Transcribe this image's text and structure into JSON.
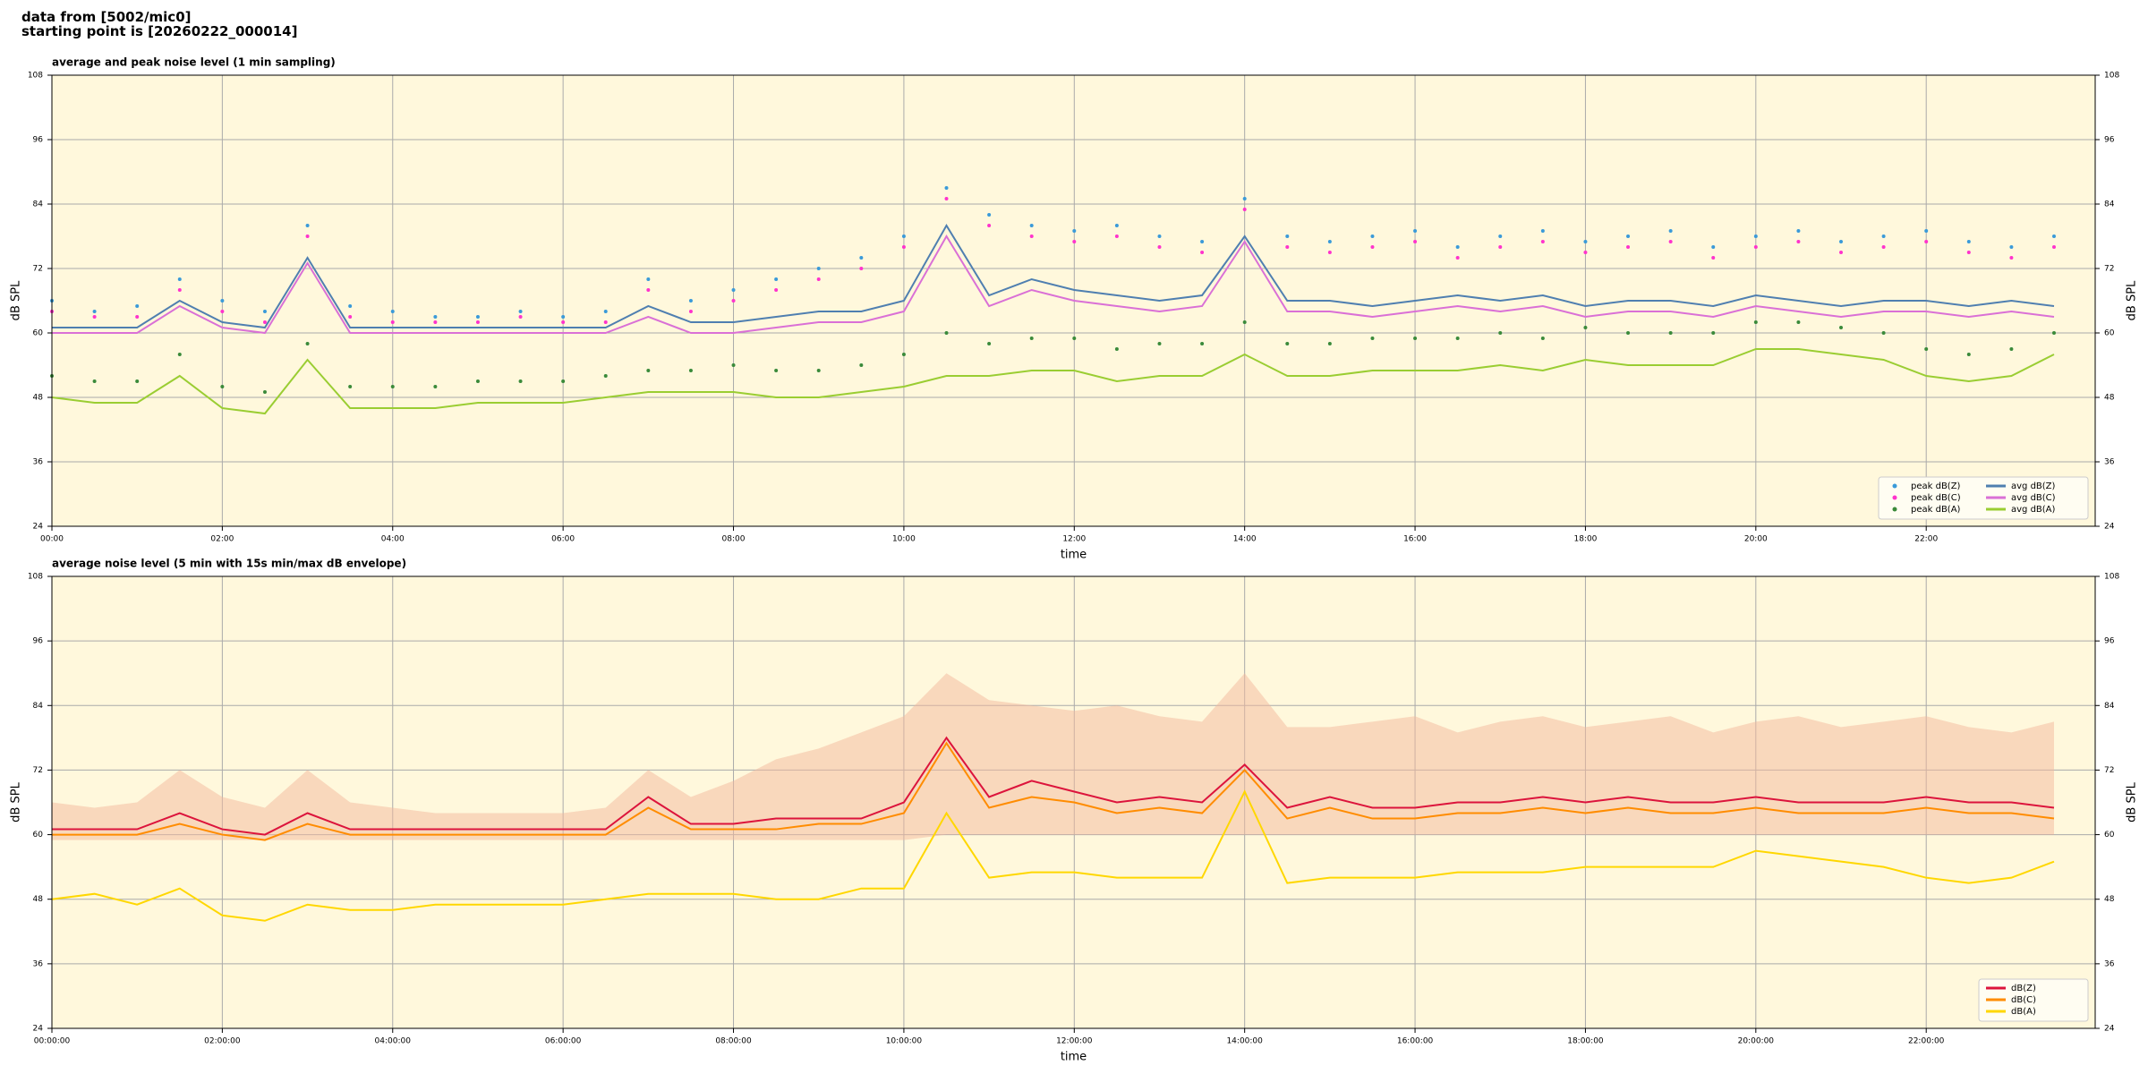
{
  "header": {
    "line1": "data from [5002/mic0]",
    "line2": "starting point is [20260222_000014]"
  },
  "chart_data": [
    {
      "type": "line",
      "title": "average and peak noise level (1 min sampling)",
      "xlabel": "time",
      "ylabel": "dB SPL",
      "x": [
        "00:00",
        "00:30",
        "01:00",
        "01:30",
        "02:00",
        "02:30",
        "03:00",
        "03:30",
        "04:00",
        "04:30",
        "05:00",
        "05:30",
        "06:00",
        "06:30",
        "07:00",
        "07:30",
        "08:00",
        "08:30",
        "09:00",
        "09:30",
        "10:00",
        "10:30",
        "11:00",
        "11:30",
        "12:00",
        "12:30",
        "13:00",
        "13:30",
        "14:00",
        "14:30",
        "15:00",
        "15:30",
        "16:00",
        "16:30",
        "17:00",
        "17:30",
        "18:00",
        "18:30",
        "19:00",
        "19:30",
        "20:00",
        "20:30",
        "21:00",
        "21:30",
        "22:00",
        "22:30",
        "23:00",
        "23:30"
      ],
      "xlim": [
        "00:00",
        "23:59"
      ],
      "xticks": [
        "00:00",
        "02:00",
        "04:00",
        "06:00",
        "08:00",
        "10:00",
        "12:00",
        "14:00",
        "16:00",
        "18:00",
        "20:00",
        "22:00"
      ],
      "ylim": [
        24,
        108
      ],
      "yticks": [
        24,
        36,
        48,
        60,
        72,
        84,
        96,
        108
      ],
      "grid": true,
      "legend": "lower right",
      "legend_columns": 2,
      "series": [
        {
          "name": "peak dB(Z)",
          "style": "dots",
          "color": "#3a9ad9",
          "values": [
            66,
            64,
            65,
            70,
            66,
            64,
            80,
            65,
            64,
            63,
            63,
            64,
            63,
            64,
            70,
            66,
            68,
            70,
            72,
            74,
            78,
            87,
            82,
            80,
            79,
            80,
            78,
            77,
            85,
            78,
            77,
            78,
            79,
            76,
            78,
            79,
            77,
            78,
            79,
            76,
            78,
            79,
            77,
            78,
            79,
            77,
            76,
            78
          ]
        },
        {
          "name": "peak dB(C)",
          "style": "dots",
          "color": "#ff33cc",
          "values": [
            64,
            63,
            63,
            68,
            64,
            62,
            78,
            63,
            62,
            62,
            62,
            63,
            62,
            62,
            68,
            64,
            66,
            68,
            70,
            72,
            76,
            85,
            80,
            78,
            77,
            78,
            76,
            75,
            83,
            76,
            75,
            76,
            77,
            74,
            76,
            77,
            75,
            76,
            77,
            74,
            76,
            77,
            75,
            76,
            77,
            75,
            74,
            76
          ]
        },
        {
          "name": "peak dB(A)",
          "style": "dots",
          "color": "#3a8a3a",
          "values": [
            52,
            51,
            51,
            56,
            50,
            49,
            58,
            50,
            50,
            50,
            51,
            51,
            51,
            52,
            53,
            53,
            54,
            53,
            53,
            54,
            56,
            60,
            58,
            59,
            59,
            57,
            58,
            58,
            62,
            58,
            58,
            59,
            59,
            59,
            60,
            59,
            61,
            60,
            60,
            60,
            62,
            62,
            61,
            60,
            57,
            56,
            57,
            60
          ]
        },
        {
          "name": "avg dB(Z)",
          "style": "line",
          "color": "#4f7fb0",
          "values": [
            61,
            61,
            61,
            66,
            62,
            61,
            74,
            61,
            61,
            61,
            61,
            61,
            61,
            61,
            65,
            62,
            62,
            63,
            64,
            64,
            66,
            80,
            67,
            70,
            68,
            67,
            66,
            67,
            78,
            66,
            66,
            65,
            66,
            67,
            66,
            67,
            65,
            66,
            66,
            65,
            67,
            66,
            65,
            66,
            66,
            65,
            66,
            65
          ]
        },
        {
          "name": "avg dB(C)",
          "style": "line",
          "color": "#da70d6",
          "values": [
            60,
            60,
            60,
            65,
            61,
            60,
            73,
            60,
            60,
            60,
            60,
            60,
            60,
            60,
            63,
            60,
            60,
            61,
            62,
            62,
            64,
            78,
            65,
            68,
            66,
            65,
            64,
            65,
            77,
            64,
            64,
            63,
            64,
            65,
            64,
            65,
            63,
            64,
            64,
            63,
            65,
            64,
            63,
            64,
            64,
            63,
            64,
            63
          ]
        },
        {
          "name": "avg dB(A)",
          "style": "line",
          "color": "#9acd32",
          "values": [
            48,
            47,
            47,
            52,
            46,
            45,
            55,
            46,
            46,
            46,
            47,
            47,
            47,
            48,
            49,
            49,
            49,
            48,
            48,
            49,
            50,
            52,
            52,
            53,
            53,
            51,
            52,
            52,
            56,
            52,
            52,
            53,
            53,
            53,
            54,
            53,
            55,
            54,
            54,
            54,
            57,
            57,
            56,
            55,
            52,
            51,
            52,
            56
          ]
        }
      ]
    },
    {
      "type": "line",
      "title": "average noise level (5 min with 15s min/max dB envelope)",
      "xlabel": "time",
      "ylabel": "dB SPL",
      "x": [
        "00:00",
        "00:30",
        "01:00",
        "01:30",
        "02:00",
        "02:30",
        "03:00",
        "03:30",
        "04:00",
        "04:30",
        "05:00",
        "05:30",
        "06:00",
        "06:30",
        "07:00",
        "07:30",
        "08:00",
        "08:30",
        "09:00",
        "09:30",
        "10:00",
        "10:30",
        "11:00",
        "11:30",
        "12:00",
        "12:30",
        "13:00",
        "13:30",
        "14:00",
        "14:30",
        "15:00",
        "15:30",
        "16:00",
        "16:30",
        "17:00",
        "17:30",
        "18:00",
        "18:30",
        "19:00",
        "19:30",
        "20:00",
        "20:30",
        "21:00",
        "21:30",
        "22:00",
        "22:30",
        "23:00",
        "23:30"
      ],
      "xlim": [
        "00:00",
        "23:59"
      ],
      "xticks": [
        {
          "value": "00:00",
          "label": "00:00:00"
        },
        {
          "value": "02:00",
          "label": "02:00:00"
        },
        {
          "value": "04:00",
          "label": "04:00:00"
        },
        {
          "value": "06:00",
          "label": "06:00:00"
        },
        {
          "value": "08:00",
          "label": "08:00:00"
        },
        {
          "value": "10:00",
          "label": "10:00:00"
        },
        {
          "value": "12:00",
          "label": "12:00:00"
        },
        {
          "value": "14:00",
          "label": "14:00:00"
        },
        {
          "value": "16:00",
          "label": "16:00:00"
        },
        {
          "value": "18:00",
          "label": "18:00:00"
        },
        {
          "value": "20:00",
          "label": "20:00:00"
        },
        {
          "value": "22:00",
          "label": "22:00:00"
        }
      ],
      "ylim": [
        24,
        108
      ],
      "yticks": [
        24,
        36,
        48,
        60,
        72,
        84,
        96,
        108
      ],
      "grid": true,
      "legend": "lower right",
      "legend_columns": 1,
      "envelope": {
        "color": "#f4b89c",
        "upper": [
          66,
          65,
          66,
          72,
          67,
          65,
          72,
          66,
          65,
          64,
          64,
          64,
          64,
          65,
          72,
          67,
          70,
          74,
          76,
          79,
          82,
          90,
          85,
          84,
          83,
          84,
          82,
          81,
          90,
          80,
          80,
          81,
          82,
          79,
          81,
          82,
          80,
          81,
          82,
          79,
          81,
          82,
          80,
          81,
          82,
          80,
          79,
          81
        ],
        "lower": [
          59,
          59,
          59,
          59,
          59,
          59,
          59,
          59,
          59,
          59,
          59,
          59,
          59,
          59,
          59,
          59,
          59,
          59,
          59,
          59,
          59,
          60,
          60,
          60,
          60,
          60,
          60,
          60,
          60,
          60,
          60,
          60,
          60,
          60,
          60,
          60,
          60,
          60,
          60,
          60,
          60,
          60,
          60,
          60,
          60,
          60,
          60,
          60
        ]
      },
      "series": [
        {
          "name": "dB(Z)",
          "style": "line",
          "color": "#dc143c",
          "values": [
            61,
            61,
            61,
            64,
            61,
            60,
            64,
            61,
            61,
            61,
            61,
            61,
            61,
            61,
            67,
            62,
            62,
            63,
            63,
            63,
            66,
            78,
            67,
            70,
            68,
            66,
            67,
            66,
            73,
            65,
            67,
            65,
            65,
            66,
            66,
            67,
            66,
            67,
            66,
            66,
            67,
            66,
            66,
            66,
            67,
            66,
            66,
            65
          ]
        },
        {
          "name": "dB(C)",
          "style": "line",
          "color": "#ff8c00",
          "values": [
            60,
            60,
            60,
            62,
            60,
            59,
            62,
            60,
            60,
            60,
            60,
            60,
            60,
            60,
            65,
            61,
            61,
            61,
            62,
            62,
            64,
            77,
            65,
            67,
            66,
            64,
            65,
            64,
            72,
            63,
            65,
            63,
            63,
            64,
            64,
            65,
            64,
            65,
            64,
            64,
            65,
            64,
            64,
            64,
            65,
            64,
            64,
            63
          ]
        },
        {
          "name": "dB(A)",
          "style": "line",
          "color": "#ffd700",
          "values": [
            48,
            49,
            47,
            50,
            45,
            44,
            47,
            46,
            46,
            47,
            47,
            47,
            47,
            48,
            49,
            49,
            49,
            48,
            48,
            50,
            50,
            64,
            52,
            53,
            53,
            52,
            52,
            52,
            68,
            51,
            52,
            52,
            52,
            53,
            53,
            53,
            54,
            54,
            54,
            54,
            57,
            56,
            55,
            54,
            52,
            51,
            52,
            55
          ]
        }
      ]
    }
  ]
}
